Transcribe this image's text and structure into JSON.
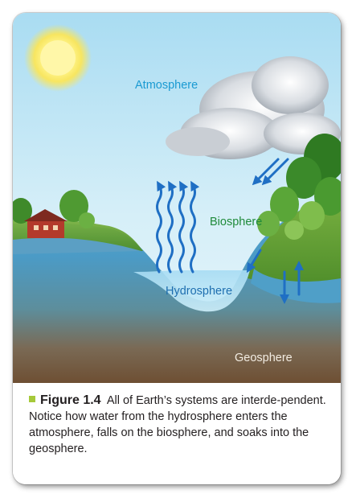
{
  "diagram": {
    "labels": {
      "atmosphere": "Atmosphere",
      "biosphere": "Biosphere",
      "hydrosphere": "Hydrosphere",
      "geosphere": "Geosphere"
    },
    "colors": {
      "atmosphere_text": "#1a9ad2",
      "biosphere_text": "#1f8a3a",
      "hydrosphere_text": "#1f6fb0",
      "geosphere_text": "#f2ece2",
      "arrow": "#1f6fc4",
      "water": "#8fd0ee",
      "ground_top": "#6fa9c7",
      "ground_bottom": "#7a5a3c",
      "sky": "#bde4f4",
      "bullet": "#a6c93a"
    },
    "icons": [
      "sun-icon",
      "cloud-icon",
      "house-icon",
      "tree-icon"
    ]
  },
  "caption": {
    "figure_label": "Figure 1.4",
    "text": "All of Earth’s systems are interde-pendent. Notice how water from the hydrosphere enters the atmosphere, falls on the biosphere, and soaks into the geosphere."
  }
}
